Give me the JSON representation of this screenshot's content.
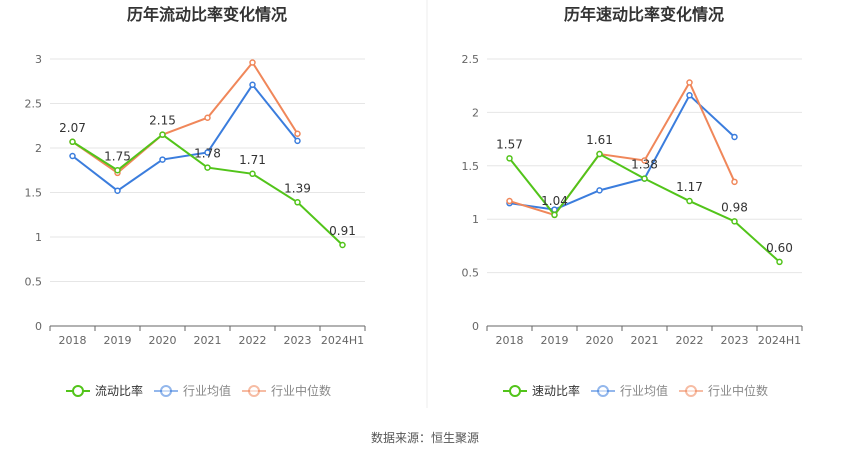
{
  "source": "数据来源：恒生聚源",
  "chart_data": [
    {
      "type": "line",
      "title": "历年流动比率变化情况",
      "categories": [
        "2018",
        "2019",
        "2020",
        "2021",
        "2022",
        "2023",
        "2024H1"
      ],
      "ylim": [
        0,
        3
      ],
      "yticks": [
        "0",
        "0.5",
        "1",
        "1.5",
        "2",
        "2.5",
        "3"
      ],
      "yticks_values": [
        0,
        0.5,
        1,
        1.5,
        2,
        2.5,
        3
      ],
      "grid": true,
      "legend_position": "bottom-center",
      "series": [
        {
          "name": "流动比率",
          "color": "#52c41a",
          "values": [
            2.07,
            1.75,
            2.15,
            1.78,
            1.71,
            1.39,
            0.91
          ],
          "labels": [
            "2.07",
            "1.75",
            "2.15",
            "1.78",
            "1.71",
            "1.39",
            "0.91"
          ]
        },
        {
          "name": "行业均值",
          "color": "#3b7ddd",
          "values": [
            1.91,
            1.52,
            1.87,
            1.95,
            2.71,
            2.08,
            null
          ]
        },
        {
          "name": "行业中位数",
          "color": "#f0875a",
          "values": [
            2.07,
            1.72,
            2.15,
            2.34,
            2.96,
            2.16,
            null
          ]
        }
      ]
    },
    {
      "type": "line",
      "title": "历年速动比率变化情况",
      "categories": [
        "2018",
        "2019",
        "2020",
        "2021",
        "2022",
        "2023",
        "2024H1"
      ],
      "ylim": [
        0,
        2.5
      ],
      "yticks": [
        "0",
        "0.5",
        "1",
        "1.5",
        "2",
        "2.5"
      ],
      "yticks_values": [
        0,
        0.5,
        1,
        1.5,
        2,
        2.5
      ],
      "grid": true,
      "legend_position": "bottom-center",
      "series": [
        {
          "name": "速动比率",
          "color": "#52c41a",
          "values": [
            1.57,
            1.04,
            1.61,
            1.38,
            1.17,
            0.98,
            0.6
          ],
          "labels": [
            "1.57",
            "1.04",
            "1.61",
            "1.38",
            "1.17",
            "0.98",
            "0.60"
          ]
        },
        {
          "name": "行业均值",
          "color": "#3b7ddd",
          "values": [
            1.15,
            1.09,
            1.27,
            1.38,
            2.16,
            1.77,
            null
          ]
        },
        {
          "name": "行业中位数",
          "color": "#f0875a",
          "values": [
            1.17,
            1.04,
            1.61,
            1.55,
            2.28,
            1.35,
            null
          ]
        }
      ]
    }
  ]
}
